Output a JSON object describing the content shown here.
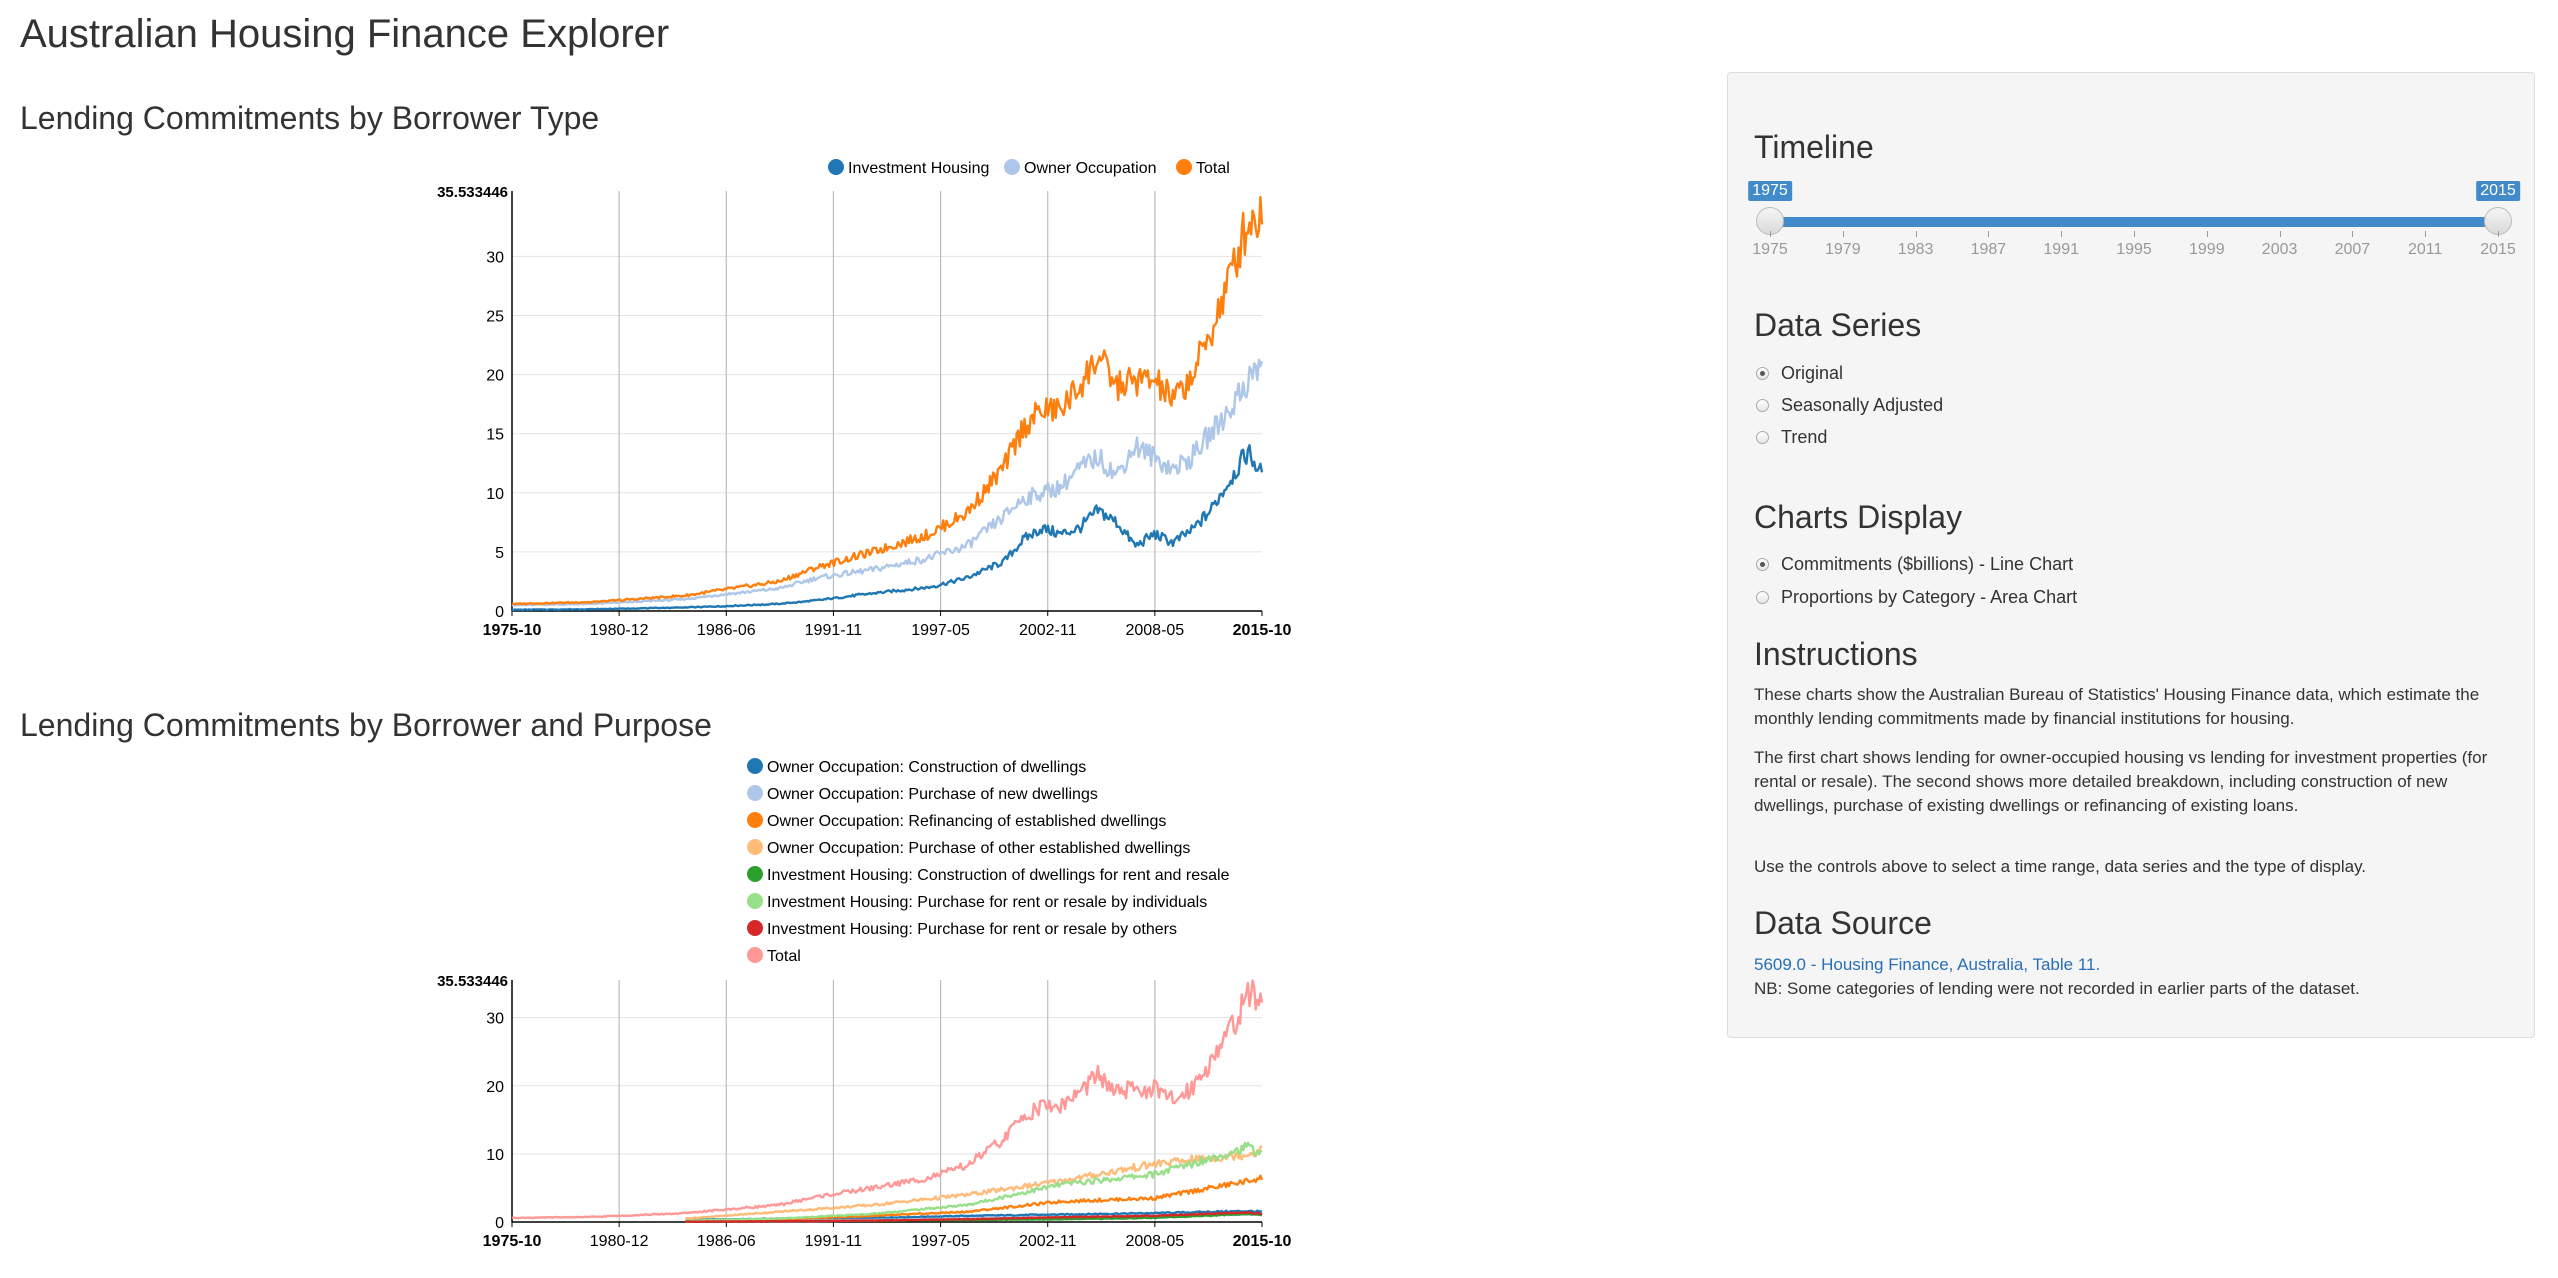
{
  "page_title": "Australian Housing Finance Explorer",
  "chart1_title": "Lending Commitments by Borrower Type",
  "chart2_title": "Lending Commitments by Borrower and Purpose",
  "colors": {
    "investment": "#1f77b4",
    "owner": "#aec7e8",
    "total": "#ff7f0e",
    "accent": "#428bca"
  },
  "sidebar": {
    "timeline": {
      "heading": "Timeline",
      "start_value": "1975",
      "end_value": "2015",
      "min": 1975,
      "max": 2015,
      "ticks": [
        "1975",
        "1979",
        "1983",
        "1987",
        "1991",
        "1995",
        "1999",
        "2003",
        "2007",
        "2011",
        "2015"
      ]
    },
    "data_series": {
      "heading": "Data Series",
      "options": [
        "Original",
        "Seasonally Adjusted",
        "Trend"
      ],
      "selected": "Original"
    },
    "charts_display": {
      "heading": "Charts Display",
      "options": [
        "Commitments ($billions) - Line Chart",
        "Proportions by Category - Area Chart"
      ],
      "selected": "Commitments ($billions) - Line Chart"
    },
    "instructions": {
      "heading": "Instructions",
      "p1": "These charts show the Australian Bureau of Statistics' Housing Finance data, which estimate the monthly lending commitments made by financial institutions for housing.",
      "p2": "The first chart shows lending for owner-occupied housing vs lending for investment properties (for rental or resale). The second shows more detailed breakdown, including construction of new dwellings, purchase of existing dwellings or refinancing of existing loans.",
      "p3": "Use the controls above to select a time range, data series and the type of display."
    },
    "data_source": {
      "heading": "Data Source",
      "link_text": "5609.0 - Housing Finance, Australia, Table 11.",
      "note": "NB: Some categories of lending were not recorded in earlier parts of the dataset."
    }
  },
  "chart_data": [
    {
      "type": "line",
      "title": "Lending Commitments by Borrower Type",
      "x_ticks": [
        "1975-10",
        "1980-12",
        "1986-06",
        "1991-11",
        "1997-05",
        "2002-11",
        "2008-05",
        "2015-10"
      ],
      "y_ticks": [
        0,
        5,
        10,
        15,
        20,
        25,
        30
      ],
      "y_max_label": "35.533446",
      "ylim": [
        0,
        35.533446
      ],
      "xlim": [
        1975.75,
        2015.75
      ],
      "legend_position": "top",
      "series": [
        {
          "name": "Investment Housing",
          "color": "#1f77b4",
          "x": [
            1975.75,
            1980,
            1985,
            1987,
            1990,
            1992,
            1995,
            1998,
            2000,
            2002,
            2003,
            2004,
            2005,
            2006,
            2007,
            2008,
            2009,
            2010,
            2011,
            2012,
            2013,
            2014,
            2015,
            2015.75
          ],
          "y": [
            0.1,
            0.15,
            0.3,
            0.4,
            0.6,
            0.9,
            1.5,
            2.0,
            2.8,
            4.2,
            6.0,
            7.0,
            6.5,
            7.0,
            8.5,
            7.5,
            5.5,
            6.5,
            5.8,
            6.8,
            8.5,
            11.0,
            13.5,
            11.5
          ]
        },
        {
          "name": "Owner Occupation",
          "color": "#aec7e8",
          "x": [
            1975.75,
            1980,
            1985,
            1987,
            1990,
            1992,
            1995,
            1998,
            2000,
            2002,
            2003,
            2004,
            2005,
            2006,
            2007,
            2008,
            2009,
            2010,
            2011,
            2012,
            2013,
            2014,
            2015,
            2015.75
          ],
          "y": [
            0.5,
            0.6,
            1.0,
            1.4,
            1.9,
            2.8,
            3.5,
            4.5,
            5.5,
            8.0,
            9.5,
            10.0,
            10.5,
            12.0,
            13.0,
            11.5,
            14.0,
            13.0,
            12.0,
            13.0,
            15.0,
            17.0,
            19.5,
            21.0
          ]
        },
        {
          "name": "Total",
          "color": "#ff7f0e",
          "x": [
            1975.75,
            1980,
            1985,
            1987,
            1990,
            1992,
            1995,
            1998,
            2000,
            2002,
            2003,
            2004,
            2005,
            2006,
            2007,
            2008,
            2009,
            2010,
            2011,
            2012,
            2013,
            2014,
            2015,
            2015.75
          ],
          "y": [
            0.6,
            0.75,
            1.3,
            1.8,
            2.5,
            3.7,
            5.0,
            6.5,
            8.3,
            12.2,
            15.5,
            17.0,
            17.0,
            19.0,
            21.5,
            19.0,
            19.5,
            19.5,
            17.8,
            19.8,
            23.5,
            28.0,
            33.0,
            33.5
          ]
        }
      ]
    },
    {
      "type": "line",
      "title": "Lending Commitments by Borrower and Purpose",
      "x_ticks": [
        "1975-10",
        "1980-12",
        "1986-06",
        "1991-11",
        "1997-05",
        "2002-11",
        "2008-05",
        "2015-10"
      ],
      "y_ticks": [
        0,
        10,
        20,
        30
      ],
      "y_max_label": "35.533446",
      "ylim": [
        0,
        35.533446
      ],
      "xlim": [
        1975.75,
        2015.75
      ],
      "legend_position": "top",
      "series": [
        {
          "name": "Owner Occupation: Construction of dwellings",
          "color": "#1f77b4",
          "x": [
            1985,
            1990,
            1995,
            2000,
            2005,
            2010,
            2015,
            2015.75
          ],
          "y": [
            0.3,
            0.5,
            0.6,
            0.9,
            1.1,
            1.3,
            1.6,
            1.5
          ]
        },
        {
          "name": "Owner Occupation: Purchase of new dwellings",
          "color": "#aec7e8",
          "x": [
            1985,
            1990,
            1995,
            2000,
            2005,
            2010,
            2015,
            2015.75
          ],
          "y": [
            0.1,
            0.2,
            0.3,
            0.5,
            0.7,
            0.9,
            1.1,
            1.0
          ]
        },
        {
          "name": "Owner Occupation: Refinancing of established dwellings",
          "color": "#ff7f0e",
          "x": [
            1985,
            1990,
            1995,
            2000,
            2005,
            2010,
            2015,
            2015.75
          ],
          "y": [
            0.2,
            0.4,
            0.9,
            1.5,
            3.0,
            3.5,
            6.0,
            6.5
          ]
        },
        {
          "name": "Owner Occupation: Purchase of other established dwellings",
          "color": "#ffbb78",
          "x": [
            1985,
            1990,
            1995,
            2000,
            2005,
            2010,
            2015,
            2015.75
          ],
          "y": [
            0.5,
            1.5,
            2.5,
            4.0,
            6.0,
            8.5,
            10.0,
            10.5
          ]
        },
        {
          "name": "Investment Housing: Construction of dwellings for rent and resale",
          "color": "#2ca02c",
          "x": [
            1985,
            1990,
            1995,
            2000,
            2005,
            2010,
            2015,
            2015.75
          ],
          "y": [
            0.05,
            0.1,
            0.2,
            0.3,
            0.4,
            0.6,
            1.2,
            1.1
          ]
        },
        {
          "name": "Investment Housing: Purchase for rent or resale by individuals",
          "color": "#98df8a",
          "x": [
            1985,
            1990,
            1995,
            2000,
            2005,
            2010,
            2015,
            2015.75
          ],
          "y": [
            0.2,
            0.5,
            1.2,
            2.5,
            5.5,
            7.0,
            11.0,
            10.0
          ]
        },
        {
          "name": "Investment Housing: Purchase for rent or resale by others",
          "color": "#d62728",
          "x": [
            1985,
            1990,
            1995,
            2000,
            2005,
            2010,
            2015,
            2015.75
          ],
          "y": [
            0.05,
            0.1,
            0.2,
            0.4,
            0.7,
            0.9,
            1.4,
            1.2
          ]
        },
        {
          "name": "Total",
          "color": "#ff9896",
          "x": [
            1975.75,
            1980,
            1985,
            1987,
            1990,
            1992,
            1995,
            1998,
            2000,
            2002,
            2003,
            2004,
            2005,
            2006,
            2007,
            2008,
            2009,
            2010,
            2011,
            2012,
            2013,
            2014,
            2015,
            2015.75
          ],
          "y": [
            0.6,
            0.75,
            1.3,
            1.8,
            2.5,
            3.7,
            5.0,
            6.5,
            8.3,
            12.2,
            15.5,
            17.0,
            17.0,
            19.0,
            21.5,
            19.0,
            19.5,
            19.5,
            17.8,
            19.8,
            23.5,
            28.0,
            33.0,
            33.5
          ]
        }
      ]
    }
  ]
}
